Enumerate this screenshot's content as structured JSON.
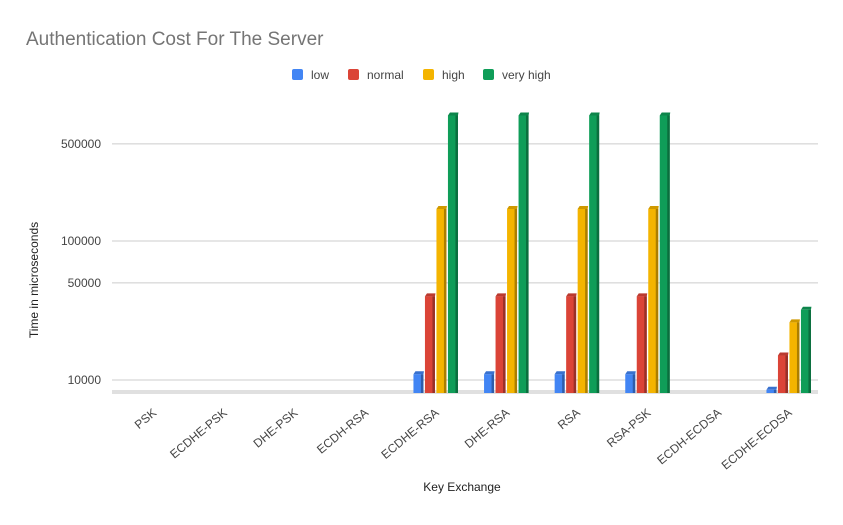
{
  "chart_data": {
    "type": "bar",
    "title": "Authentication Cost For The Server",
    "xlabel": "Key Exchange",
    "ylabel": "Time in microseconds",
    "yscale": "log",
    "ylim": [
      7800,
      900000
    ],
    "yticks": [
      10000,
      50000,
      100000,
      500000
    ],
    "ytick_labels": [
      "10000",
      "50000",
      "100000",
      "500000"
    ],
    "grid": true,
    "legend_position": "top",
    "categories": [
      "PSK",
      "ECDHE-PSK",
      "DHE-PSK",
      "ECDH-RSA",
      "ECDHE-RSA",
      "DHE-RSA",
      "RSA",
      "RSA-PSK",
      "ECDH-ECDSA",
      "ECDHE-ECDSA"
    ],
    "series": [
      {
        "name": "low",
        "color": "#4285f4",
        "values": [
          null,
          null,
          null,
          null,
          11000,
          11000,
          11000,
          11000,
          null,
          8500
        ]
      },
      {
        "name": "normal",
        "color": "#db4437",
        "values": [
          null,
          null,
          null,
          null,
          40000,
          40000,
          40000,
          40000,
          null,
          15000
        ]
      },
      {
        "name": "high",
        "color": "#f4b400",
        "values": [
          null,
          null,
          null,
          null,
          170000,
          170000,
          170000,
          170000,
          null,
          26000
        ]
      },
      {
        "name": "very high",
        "color": "#0f9d58",
        "values": [
          null,
          null,
          null,
          null,
          800000,
          800000,
          800000,
          800000,
          null,
          32000
        ]
      }
    ]
  }
}
